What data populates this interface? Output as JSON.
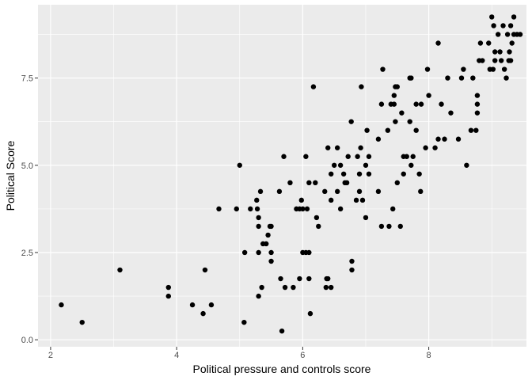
{
  "chart_data": {
    "type": "scatter",
    "title": "",
    "xlabel": "Political pressure and controls score",
    "ylabel": "Political Score",
    "xlim": [
      1.8,
      9.55
    ],
    "ylim": [
      -0.2,
      9.6
    ],
    "x_ticks": [
      2,
      4,
      6,
      8
    ],
    "y_ticks": [
      0,
      2.5,
      5,
      7.5
    ],
    "x_tick_labels": [
      "2",
      "4",
      "6",
      "8"
    ],
    "y_tick_labels": [
      "0.0",
      "2.5",
      "5.0",
      "7.5"
    ],
    "grid": true,
    "legend": "none",
    "colors": {
      "panel": "#ebebeb",
      "grid": "#ffffff",
      "point": "#000000"
    },
    "points": [
      [
        2.17,
        1.0
      ],
      [
        2.5,
        0.5
      ],
      [
        3.1,
        2.0
      ],
      [
        3.87,
        1.5
      ],
      [
        3.87,
        1.25
      ],
      [
        4.25,
        1.0
      ],
      [
        4.42,
        0.75
      ],
      [
        4.45,
        2.0
      ],
      [
        4.55,
        1.0
      ],
      [
        4.67,
        3.75
      ],
      [
        4.95,
        3.75
      ],
      [
        5.0,
        5.0
      ],
      [
        5.07,
        0.5
      ],
      [
        5.08,
        2.5
      ],
      [
        5.17,
        3.75
      ],
      [
        5.27,
        4.0
      ],
      [
        5.28,
        3.75
      ],
      [
        5.3,
        3.5
      ],
      [
        5.3,
        3.25
      ],
      [
        5.3,
        2.5
      ],
      [
        5.3,
        1.25
      ],
      [
        5.33,
        4.25
      ],
      [
        5.35,
        1.5
      ],
      [
        5.37,
        2.75
      ],
      [
        5.42,
        2.75
      ],
      [
        5.45,
        3.0
      ],
      [
        5.48,
        3.25
      ],
      [
        5.5,
        3.25
      ],
      [
        5.5,
        2.5
      ],
      [
        5.5,
        2.25
      ],
      [
        5.63,
        4.25
      ],
      [
        5.65,
        1.75
      ],
      [
        5.67,
        0.25
      ],
      [
        5.7,
        5.25
      ],
      [
        5.72,
        1.5
      ],
      [
        5.8,
        4.5
      ],
      [
        5.85,
        1.5
      ],
      [
        5.9,
        3.75
      ],
      [
        5.95,
        1.75
      ],
      [
        5.95,
        3.75
      ],
      [
        5.98,
        4.0
      ],
      [
        6.0,
        2.5
      ],
      [
        6.0,
        3.75
      ],
      [
        6.05,
        2.5
      ],
      [
        6.05,
        5.25
      ],
      [
        6.07,
        3.75
      ],
      [
        6.1,
        1.75
      ],
      [
        6.1,
        2.5
      ],
      [
        6.1,
        4.5
      ],
      [
        6.12,
        0.75
      ],
      [
        6.17,
        7.25
      ],
      [
        6.2,
        4.5
      ],
      [
        6.22,
        3.5
      ],
      [
        6.25,
        3.25
      ],
      [
        6.35,
        4.25
      ],
      [
        6.37,
        1.5
      ],
      [
        6.38,
        1.75
      ],
      [
        6.4,
        1.75
      ],
      [
        6.4,
        5.5
      ],
      [
        6.45,
        4.0
      ],
      [
        6.45,
        4.75
      ],
      [
        6.45,
        1.5
      ],
      [
        6.5,
        5.0
      ],
      [
        6.55,
        4.25
      ],
      [
        6.55,
        5.5
      ],
      [
        6.6,
        3.75
      ],
      [
        6.6,
        5.0
      ],
      [
        6.65,
        4.75
      ],
      [
        6.67,
        4.5
      ],
      [
        6.7,
        4.5
      ],
      [
        6.72,
        5.25
      ],
      [
        6.77,
        6.25
      ],
      [
        6.78,
        2.25
      ],
      [
        6.78,
        2.0
      ],
      [
        6.85,
        4.0
      ],
      [
        6.87,
        5.25
      ],
      [
        6.9,
        4.75
      ],
      [
        6.9,
        4.25
      ],
      [
        6.92,
        5.5
      ],
      [
        6.93,
        7.25
      ],
      [
        6.95,
        4.0
      ],
      [
        7.0,
        3.5
      ],
      [
        7.0,
        5.0
      ],
      [
        7.02,
        6.0
      ],
      [
        7.05,
        5.25
      ],
      [
        7.05,
        4.75
      ],
      [
        7.2,
        4.25
      ],
      [
        7.2,
        5.75
      ],
      [
        7.25,
        3.25
      ],
      [
        7.25,
        6.75
      ],
      [
        7.27,
        7.75
      ],
      [
        7.35,
        6.0
      ],
      [
        7.37,
        3.25
      ],
      [
        7.4,
        6.75
      ],
      [
        7.43,
        3.75
      ],
      [
        7.45,
        7.0
      ],
      [
        7.45,
        6.75
      ],
      [
        7.47,
        7.25
      ],
      [
        7.47,
        6.25
      ],
      [
        7.5,
        4.5
      ],
      [
        7.5,
        7.25
      ],
      [
        7.55,
        3.25
      ],
      [
        7.57,
        6.5
      ],
      [
        7.6,
        4.75
      ],
      [
        7.6,
        5.25
      ],
      [
        7.65,
        5.25
      ],
      [
        7.7,
        7.5
      ],
      [
        7.7,
        6.25
      ],
      [
        7.72,
        7.5
      ],
      [
        7.72,
        5.0
      ],
      [
        7.75,
        5.25
      ],
      [
        7.8,
        6.0
      ],
      [
        7.8,
        6.75
      ],
      [
        7.85,
        4.75
      ],
      [
        7.87,
        4.25
      ],
      [
        7.88,
        6.75
      ],
      [
        7.95,
        5.5
      ],
      [
        7.98,
        7.75
      ],
      [
        8.0,
        7.0
      ],
      [
        8.1,
        5.5
      ],
      [
        8.15,
        5.75
      ],
      [
        8.15,
        8.5
      ],
      [
        8.2,
        6.75
      ],
      [
        8.25,
        5.75
      ],
      [
        8.3,
        7.5
      ],
      [
        8.35,
        6.5
      ],
      [
        8.47,
        5.75
      ],
      [
        8.52,
        7.5
      ],
      [
        8.55,
        7.75
      ],
      [
        8.6,
        5.0
      ],
      [
        8.67,
        6.0
      ],
      [
        8.7,
        7.5
      ],
      [
        8.75,
        6.0
      ],
      [
        8.77,
        7.0
      ],
      [
        8.77,
        6.75
      ],
      [
        8.77,
        6.5
      ],
      [
        8.8,
        8.0
      ],
      [
        8.82,
        8.5
      ],
      [
        8.85,
        8.0
      ],
      [
        8.95,
        8.5
      ],
      [
        8.97,
        7.75
      ],
      [
        9.0,
        9.25
      ],
      [
        9.02,
        7.75
      ],
      [
        9.03,
        9.0
      ],
      [
        9.05,
        8.0
      ],
      [
        9.05,
        8.25
      ],
      [
        9.1,
        8.75
      ],
      [
        9.13,
        8.25
      ],
      [
        9.15,
        8.0
      ],
      [
        9.18,
        9.0
      ],
      [
        9.2,
        7.75
      ],
      [
        9.23,
        7.5
      ],
      [
        9.25,
        8.75
      ],
      [
        9.27,
        8.0
      ],
      [
        9.28,
        8.25
      ],
      [
        9.3,
        9.0
      ],
      [
        9.3,
        8.0
      ],
      [
        9.32,
        8.5
      ],
      [
        9.35,
        8.75
      ],
      [
        9.35,
        9.25
      ],
      [
        9.4,
        8.75
      ],
      [
        9.45,
        8.75
      ]
    ]
  }
}
